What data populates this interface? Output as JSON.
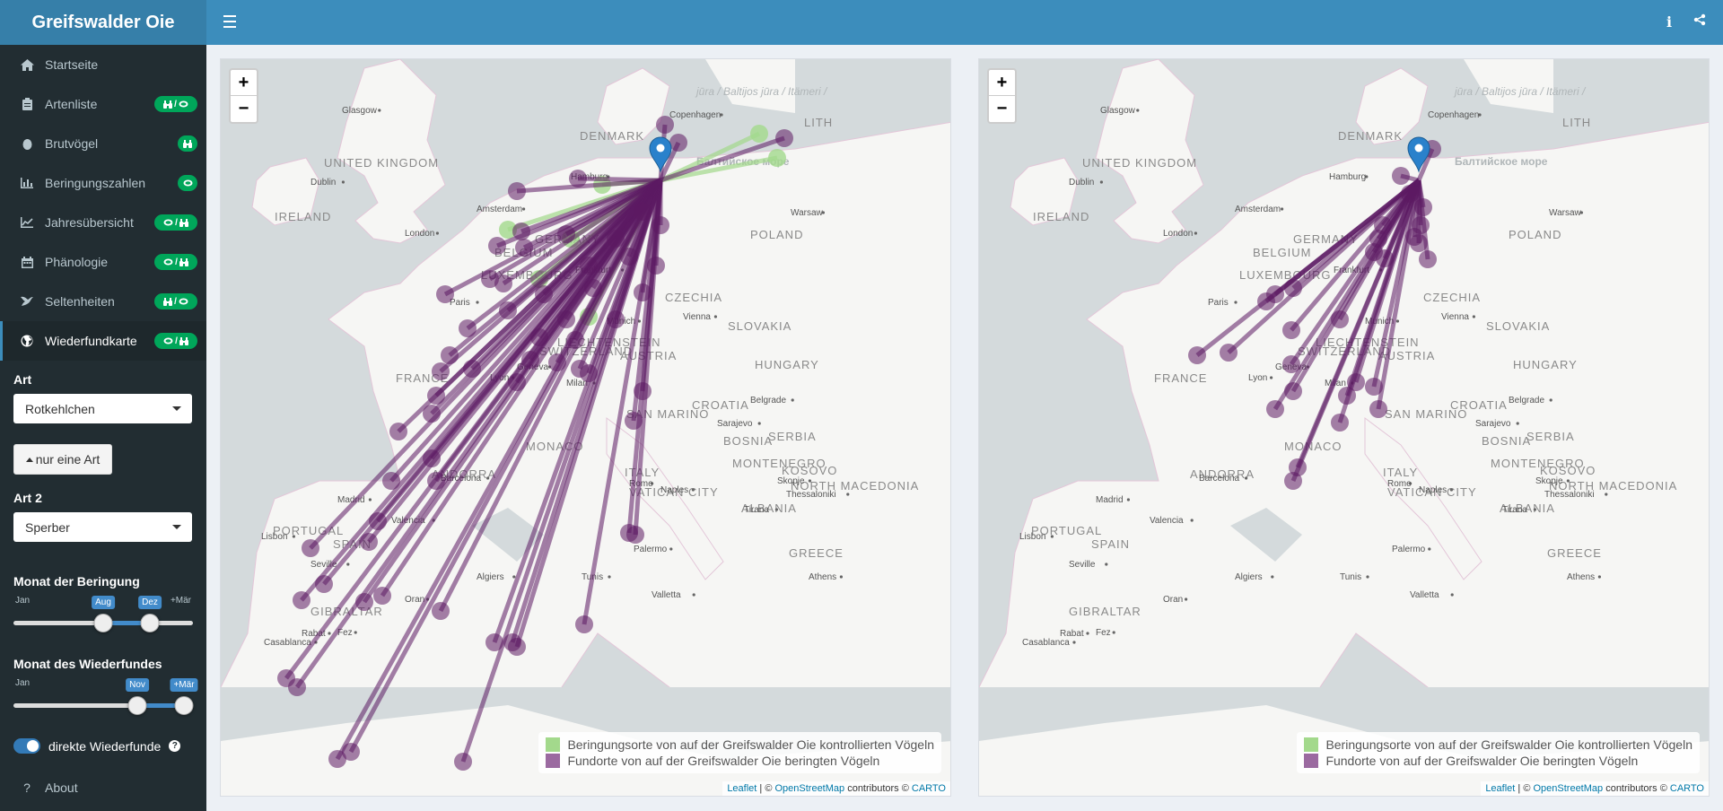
{
  "app": {
    "title": "Greifswalder Oie"
  },
  "header": {
    "info_icon": "info-icon",
    "share_icon": "share-icon"
  },
  "sidebar": {
    "items": [
      {
        "label": "Startseite",
        "icon": "home-icon",
        "badge": ""
      },
      {
        "label": "Artenliste",
        "icon": "clipboard-icon",
        "badge": "binoculars/ring"
      },
      {
        "label": "Brutvögel",
        "icon": "egg-icon",
        "badge": "binoculars"
      },
      {
        "label": "Beringungszahlen",
        "icon": "bar-chart-icon",
        "badge": "ring"
      },
      {
        "label": "Jahresübersicht",
        "icon": "line-chart-icon",
        "badge": "ring/binoculars"
      },
      {
        "label": "Phänologie",
        "icon": "calendar-icon",
        "badge": "ring/binoculars"
      },
      {
        "label": "Seltenheiten",
        "icon": "bird-icon",
        "badge": "binoculars/ring"
      },
      {
        "label": "Wiederfundkarte",
        "icon": "globe-icon",
        "badge": "ring/binoculars",
        "active": true
      }
    ],
    "art_label": "Art",
    "art_value": "Rotkehlchen",
    "one_species_button": "nur eine Art",
    "art2_label": "Art 2",
    "art2_value": "Sperber",
    "ring_month": {
      "label": "Monat der Beringung",
      "min": "Jan",
      "max": "+Mär",
      "from": "Aug",
      "to": "Dez",
      "from_frac": 0.5,
      "to_frac": 0.76
    },
    "find_month": {
      "label": "Monat des Wiederfundes",
      "min": "Jan",
      "max": "+Mär",
      "from": "Nov",
      "to": "+Mär",
      "from_frac": 0.69,
      "to_frac": 0.95
    },
    "direct_label": "direkte Wiederfunde",
    "direct_checked": true,
    "about_label": "About"
  },
  "maps": {
    "legend_green": "Beringungsorte von auf der Greifswalder Oie kontrollierten Vögeln",
    "legend_purple": "Fundorte von auf der Greifswalder Oie beringten Vögeln",
    "attribution_leaflet": "Leaflet",
    "attribution_mid": " | © ",
    "attribution_osm": "OpenStreetMap",
    "attribution_contrib": " contributors © ",
    "attribution_carto": "CARTO",
    "colors": {
      "green": "#a3d98c",
      "purple": "#5c1a63",
      "water": "#d4dadc",
      "land": "#f6f6f4"
    },
    "labels": {
      "countries": [
        "UNITED KINGDOM",
        "IRELAND",
        "DENMARK",
        "POLAND",
        "CZECHIA",
        "SLOVAKIA",
        "AUSTRIA",
        "HUNGARY",
        "FRANCE",
        "SPAIN",
        "PORTUGAL",
        "ITALY",
        "CROATIA",
        "SERBIA",
        "GREECE",
        "ANDORRA",
        "MONACO",
        "LUXEMBOURG",
        "LIECHTENSTEIN",
        "SWITZERLAND",
        "GERMANY",
        "BELGIUM",
        "GIBRALTAR",
        "ALBANIA",
        "KOSOVO",
        "MONTENEGRO",
        "NORTH MACEDONIA",
        "SAN MARINO",
        "VATICAN CITY",
        "BOSNIA",
        "LITH"
      ],
      "cities": [
        "Glasgow",
        "Dublin",
        "London",
        "Amsterdam",
        "Hamburg",
        "Paris",
        "Frankfurt",
        "Munich",
        "Vienna",
        "Warsaw",
        "Copenhagen",
        "Madrid",
        "Barcelona",
        "Lisbon",
        "Seville",
        "Valencia",
        "Lyon",
        "Geneva",
        "Milan",
        "Belgrade",
        "Sarajevo",
        "Rome",
        "Naples",
        "Palermo",
        "Tunis",
        "Algiers",
        "Oran",
        "Rabat",
        "Fez",
        "Casablanca",
        "Valletta",
        "Tirana",
        "Thessaloniki",
        "Athens",
        "Skopje"
      ],
      "baltic": [
        "jūra / Baltijos jūra / Itämeri / Läänemeri / Morze Bałtyckie / Östersjön / Østersøen / Ostsee",
        "Балтийское море"
      ]
    }
  }
}
